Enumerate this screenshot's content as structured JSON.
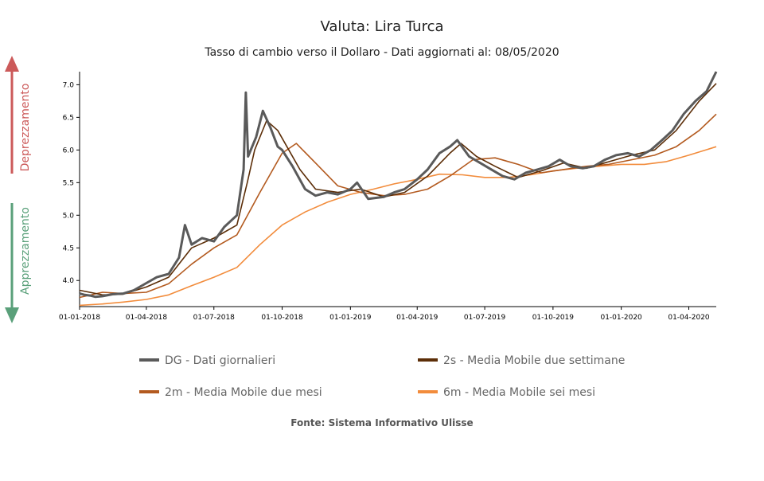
{
  "chart_data": {
    "type": "line",
    "title": "Valuta: Lira Turca",
    "subtitle": "Tasso di cambio verso il Dollaro - Dati aggiornati al: 08/05/2020",
    "source": "Fonte: Sistema Informativo Ulisse",
    "indicator_up": "Deprezzamento",
    "indicator_down": "Apprezzamento",
    "x_ticks": [
      "01-01-2018",
      "01-04-2018",
      "01-07-2018",
      "01-10-2018",
      "01-01-2019",
      "01-04-2019",
      "01-07-2019",
      "01-10-2019",
      "01-01-2020",
      "01-04-2020"
    ],
    "y_ticks": [
      "4.0",
      "4.5",
      "5.0",
      "5.5",
      "6.0",
      "6.5",
      "7.0"
    ],
    "ylim": [
      3.6,
      7.2
    ],
    "xlim": [
      "2018-01-01",
      "2020-05-08"
    ],
    "legend": [
      {
        "key": "dg",
        "label": "DG - Dati giornalieri"
      },
      {
        "key": "2s",
        "label": "2s - Media Mobile due settimane"
      },
      {
        "key": "2m",
        "label": "2m - Media Mobile due mesi"
      },
      {
        "key": "6m",
        "label": "6m - Media Mobile sei mesi"
      }
    ],
    "colors": {
      "dg": "#5a5a5a",
      "2s": "#5c2e08",
      "2m": "#b35a1f",
      "6m": "#f28c3c"
    },
    "series": [
      {
        "key": "dg",
        "name": "DG - Dati giornalieri",
        "points": [
          [
            "2018-01-01",
            3.8
          ],
          [
            "2018-01-08",
            3.78
          ],
          [
            "2018-01-15",
            3.77
          ],
          [
            "2018-01-22",
            3.75
          ],
          [
            "2018-02-01",
            3.76
          ],
          [
            "2018-02-15",
            3.79
          ],
          [
            "2018-03-01",
            3.8
          ],
          [
            "2018-03-15",
            3.85
          ],
          [
            "2018-04-01",
            3.96
          ],
          [
            "2018-04-15",
            4.05
          ],
          [
            "2018-05-01",
            4.1
          ],
          [
            "2018-05-15",
            4.35
          ],
          [
            "2018-05-23",
            4.85
          ],
          [
            "2018-06-01",
            4.55
          ],
          [
            "2018-06-15",
            4.65
          ],
          [
            "2018-07-01",
            4.6
          ],
          [
            "2018-07-15",
            4.82
          ],
          [
            "2018-08-01",
            5.0
          ],
          [
            "2018-08-10",
            5.7
          ],
          [
            "2018-08-13",
            6.88
          ],
          [
            "2018-08-16",
            5.9
          ],
          [
            "2018-08-27",
            6.2
          ],
          [
            "2018-09-05",
            6.6
          ],
          [
            "2018-09-15",
            6.35
          ],
          [
            "2018-09-25",
            6.05
          ],
          [
            "2018-10-01",
            6.0
          ],
          [
            "2018-10-15",
            5.75
          ],
          [
            "2018-11-01",
            5.4
          ],
          [
            "2018-11-15",
            5.3
          ],
          [
            "2018-12-01",
            5.35
          ],
          [
            "2018-12-15",
            5.32
          ],
          [
            "2019-01-01",
            5.4
          ],
          [
            "2019-01-10",
            5.5
          ],
          [
            "2019-01-25",
            5.25
          ],
          [
            "2019-02-15",
            5.28
          ],
          [
            "2019-03-01",
            5.35
          ],
          [
            "2019-03-15",
            5.4
          ],
          [
            "2019-04-01",
            5.55
          ],
          [
            "2019-04-15",
            5.7
          ],
          [
            "2019-05-01",
            5.95
          ],
          [
            "2019-05-15",
            6.05
          ],
          [
            "2019-05-25",
            6.15
          ],
          [
            "2019-06-10",
            5.9
          ],
          [
            "2019-06-25",
            5.8
          ],
          [
            "2019-07-10",
            5.7
          ],
          [
            "2019-07-25",
            5.6
          ],
          [
            "2019-08-10",
            5.55
          ],
          [
            "2019-08-25",
            5.65
          ],
          [
            "2019-09-10",
            5.7
          ],
          [
            "2019-09-25",
            5.75
          ],
          [
            "2019-10-10",
            5.85
          ],
          [
            "2019-10-25",
            5.75
          ],
          [
            "2019-11-10",
            5.72
          ],
          [
            "2019-11-25",
            5.75
          ],
          [
            "2019-12-10",
            5.85
          ],
          [
            "2019-12-25",
            5.92
          ],
          [
            "2020-01-10",
            5.95
          ],
          [
            "2020-01-25",
            5.9
          ],
          [
            "2020-02-10",
            6.0
          ],
          [
            "2020-02-25",
            6.15
          ],
          [
            "2020-03-10",
            6.3
          ],
          [
            "2020-03-25",
            6.55
          ],
          [
            "2020-04-10",
            6.75
          ],
          [
            "2020-04-25",
            6.9
          ],
          [
            "2020-05-08",
            7.2
          ]
        ]
      },
      {
        "key": "2s",
        "name": "2s - Media Mobile due settimane",
        "points": [
          [
            "2018-01-01",
            3.85
          ],
          [
            "2018-02-01",
            3.78
          ],
          [
            "2018-03-01",
            3.79
          ],
          [
            "2018-04-01",
            3.9
          ],
          [
            "2018-05-01",
            4.05
          ],
          [
            "2018-06-01",
            4.5
          ],
          [
            "2018-07-01",
            4.65
          ],
          [
            "2018-08-01",
            4.85
          ],
          [
            "2018-08-15",
            5.5
          ],
          [
            "2018-08-25",
            6.0
          ],
          [
            "2018-09-10",
            6.45
          ],
          [
            "2018-09-25",
            6.3
          ],
          [
            "2018-10-10",
            6.0
          ],
          [
            "2018-10-25",
            5.7
          ],
          [
            "2018-11-15",
            5.4
          ],
          [
            "2018-12-15",
            5.35
          ],
          [
            "2019-01-15",
            5.4
          ],
          [
            "2019-02-15",
            5.28
          ],
          [
            "2019-03-15",
            5.35
          ],
          [
            "2019-04-15",
            5.6
          ],
          [
            "2019-05-15",
            5.95
          ],
          [
            "2019-05-30",
            6.1
          ],
          [
            "2019-06-20",
            5.9
          ],
          [
            "2019-07-15",
            5.75
          ],
          [
            "2019-08-15",
            5.58
          ],
          [
            "2019-09-15",
            5.68
          ],
          [
            "2019-10-15",
            5.8
          ],
          [
            "2019-11-15",
            5.72
          ],
          [
            "2019-12-15",
            5.82
          ],
          [
            "2020-01-15",
            5.92
          ],
          [
            "2020-02-15",
            6.0
          ],
          [
            "2020-03-15",
            6.3
          ],
          [
            "2020-04-15",
            6.75
          ],
          [
            "2020-05-08",
            7.02
          ]
        ]
      },
      {
        "key": "2m",
        "name": "2m - Media Mobile due mesi",
        "points": [
          [
            "2018-01-01",
            3.74
          ],
          [
            "2018-02-01",
            3.82
          ],
          [
            "2018-03-01",
            3.8
          ],
          [
            "2018-04-01",
            3.82
          ],
          [
            "2018-05-01",
            3.95
          ],
          [
            "2018-06-01",
            4.25
          ],
          [
            "2018-07-01",
            4.5
          ],
          [
            "2018-08-01",
            4.7
          ],
          [
            "2018-09-01",
            5.35
          ],
          [
            "2018-10-01",
            5.95
          ],
          [
            "2018-10-20",
            6.1
          ],
          [
            "2018-11-15",
            5.8
          ],
          [
            "2018-12-15",
            5.45
          ],
          [
            "2019-01-15",
            5.35
          ],
          [
            "2019-02-15",
            5.3
          ],
          [
            "2019-03-15",
            5.32
          ],
          [
            "2019-04-15",
            5.4
          ],
          [
            "2019-05-15",
            5.6
          ],
          [
            "2019-06-15",
            5.85
          ],
          [
            "2019-07-15",
            5.88
          ],
          [
            "2019-08-15",
            5.78
          ],
          [
            "2019-09-15",
            5.65
          ],
          [
            "2019-10-15",
            5.7
          ],
          [
            "2019-11-15",
            5.75
          ],
          [
            "2019-12-15",
            5.78
          ],
          [
            "2020-01-15",
            5.85
          ],
          [
            "2020-02-15",
            5.92
          ],
          [
            "2020-03-15",
            6.05
          ],
          [
            "2020-04-15",
            6.3
          ],
          [
            "2020-05-08",
            6.55
          ]
        ]
      },
      {
        "key": "6m",
        "name": "6m - Media Mobile sei mesi",
        "points": [
          [
            "2018-01-01",
            3.62
          ],
          [
            "2018-02-01",
            3.64
          ],
          [
            "2018-03-01",
            3.67
          ],
          [
            "2018-04-01",
            3.71
          ],
          [
            "2018-05-01",
            3.78
          ],
          [
            "2018-06-01",
            3.92
          ],
          [
            "2018-07-01",
            4.05
          ],
          [
            "2018-08-01",
            4.2
          ],
          [
            "2018-09-01",
            4.55
          ],
          [
            "2018-10-01",
            4.85
          ],
          [
            "2018-11-01",
            5.05
          ],
          [
            "2018-12-01",
            5.2
          ],
          [
            "2019-01-01",
            5.32
          ],
          [
            "2019-02-01",
            5.4
          ],
          [
            "2019-03-01",
            5.48
          ],
          [
            "2019-04-01",
            5.55
          ],
          [
            "2019-05-01",
            5.63
          ],
          [
            "2019-06-01",
            5.62
          ],
          [
            "2019-07-01",
            5.58
          ],
          [
            "2019-08-01",
            5.58
          ],
          [
            "2019-09-01",
            5.62
          ],
          [
            "2019-10-01",
            5.68
          ],
          [
            "2019-11-01",
            5.72
          ],
          [
            "2019-12-01",
            5.75
          ],
          [
            "2020-01-01",
            5.78
          ],
          [
            "2020-02-01",
            5.78
          ],
          [
            "2020-03-01",
            5.82
          ],
          [
            "2020-04-01",
            5.92
          ],
          [
            "2020-05-08",
            6.05
          ]
        ]
      }
    ]
  }
}
